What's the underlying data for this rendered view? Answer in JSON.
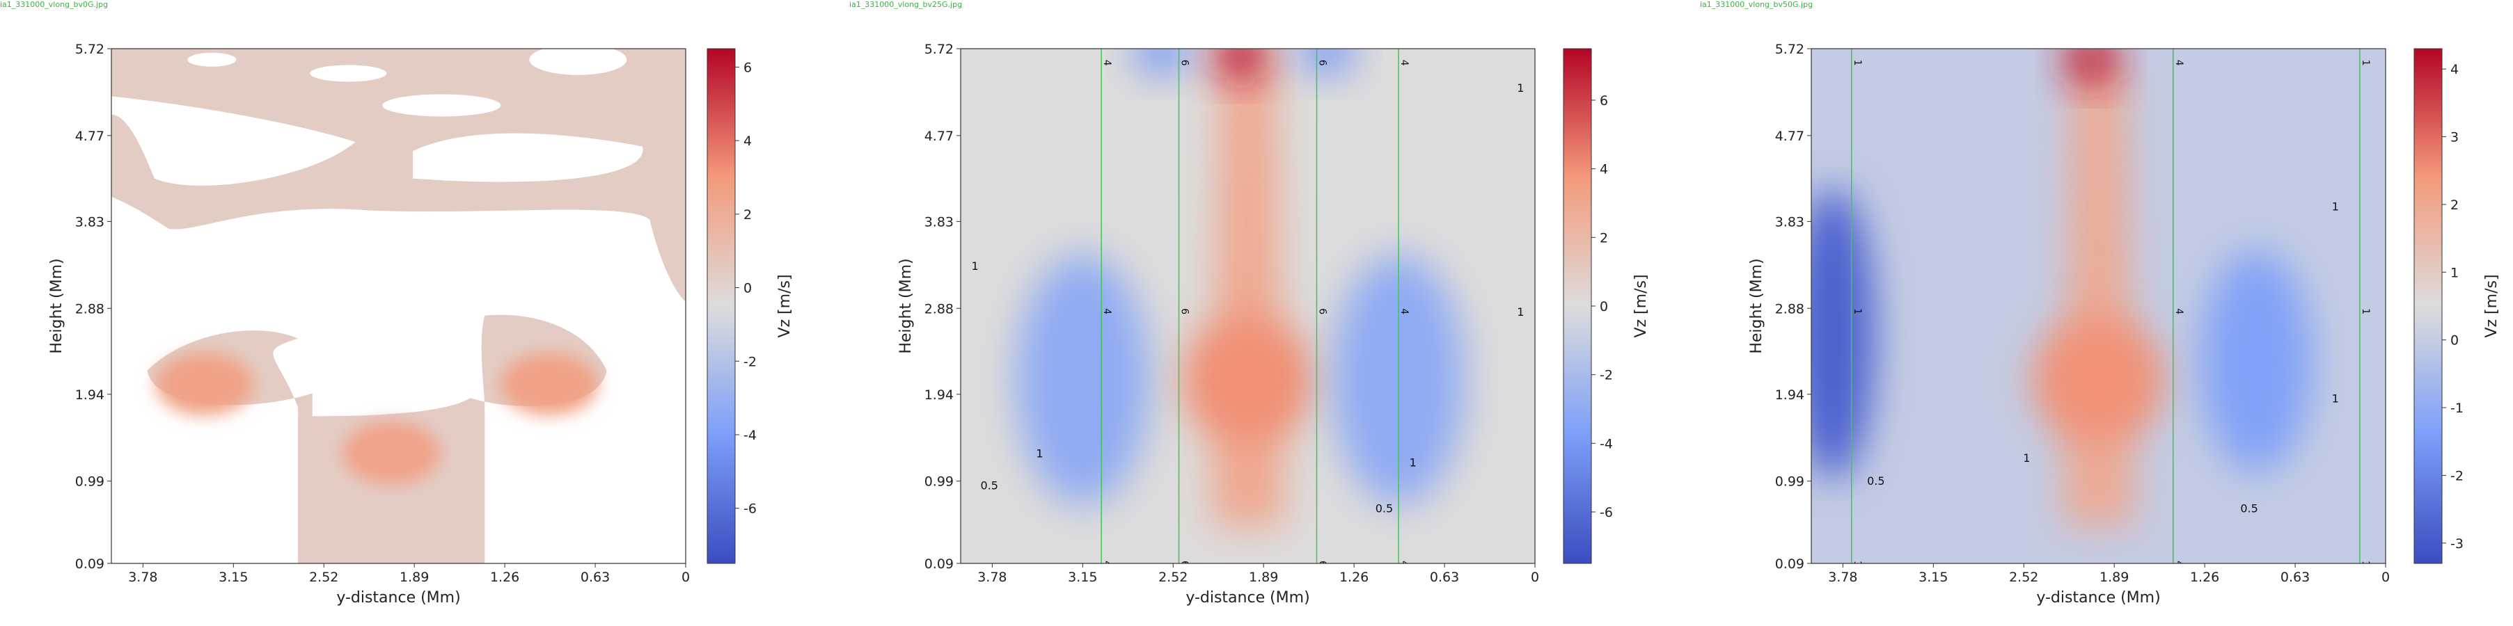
{
  "chart_data": [
    {
      "type": "heatmap",
      "filename": "ia1_331000_vlong_bv0G.jpg",
      "xlabel": "y-distance (Mm)",
      "ylabel": "Height (Mm)",
      "colorbar_label": "Vz [m/s]",
      "x_ticks": [
        "3.78",
        "3.15",
        "2.52",
        "1.89",
        "1.26",
        "0.63",
        "0"
      ],
      "y_ticks": [
        "0.09",
        "0.99",
        "1.94",
        "2.88",
        "3.83",
        "4.77",
        "5.72"
      ],
      "colorbar_ticks": [
        "-6",
        "-4",
        "-2",
        "0",
        "2",
        "4",
        "6"
      ],
      "colorbar_range": [
        -7.5,
        6.5
      ],
      "x_range": [
        4.0,
        0.0
      ],
      "y_range": [
        0.09,
        5.72
      ],
      "features": [
        {
          "kind": "blob",
          "x": 3.35,
          "y": 2.05,
          "value": 2.6
        },
        {
          "kind": "blob",
          "x": 0.95,
          "y": 2.05,
          "value": 2.6
        },
        {
          "kind": "blob",
          "x": 2.05,
          "y": 1.3,
          "value": 2.5
        }
      ],
      "contours": [],
      "field_lines": []
    },
    {
      "type": "heatmap",
      "filename": "ia1_331000_vlong_bv25G.jpg",
      "xlabel": "y-distance (Mm)",
      "ylabel": "Height (Mm)",
      "colorbar_label": "Vz [m/s]",
      "x_ticks": [
        "3.78",
        "3.15",
        "2.52",
        "1.89",
        "1.26",
        "0.63",
        "0"
      ],
      "y_ticks": [
        "0.09",
        "0.99",
        "1.94",
        "2.88",
        "3.83",
        "4.77",
        "5.72"
      ],
      "colorbar_ticks": [
        "-6",
        "-4",
        "-2",
        "0",
        "2",
        "4",
        "6"
      ],
      "colorbar_range": [
        -7.5,
        7.5
      ],
      "x_range": [
        4.0,
        0.0
      ],
      "y_range": [
        0.09,
        5.72
      ],
      "features": [
        {
          "kind": "column",
          "x": 2.0,
          "value": 3.2
        },
        {
          "kind": "blob",
          "x": 3.15,
          "y": 2.1,
          "value": -3.0
        },
        {
          "kind": "blob",
          "x": 0.95,
          "y": 2.1,
          "value": -3.0
        },
        {
          "kind": "blob",
          "x": 2.05,
          "y": 5.65,
          "value": 7.0
        },
        {
          "kind": "blob",
          "x": 2.6,
          "y": 5.7,
          "value": -4.0
        },
        {
          "kind": "blob",
          "x": 1.45,
          "y": 5.7,
          "value": -4.0
        }
      ],
      "contours": [
        {
          "label": "1",
          "x": 3.45,
          "y": 1.25
        },
        {
          "label": "0.5",
          "x": 3.8,
          "y": 0.9
        },
        {
          "label": "1",
          "x": 0.85,
          "y": 1.15
        },
        {
          "label": "0.5",
          "x": 1.05,
          "y": 0.65
        },
        {
          "label": "1",
          "x": 0.1,
          "y": 5.25
        },
        {
          "label": "1",
          "x": 3.9,
          "y": 3.3
        },
        {
          "label": "1",
          "x": 0.1,
          "y": 2.8
        }
      ],
      "field_lines": [
        {
          "x": 3.02,
          "label": "4"
        },
        {
          "x": 2.48,
          "label": "6"
        },
        {
          "x": 1.52,
          "label": "6"
        },
        {
          "x": 0.95,
          "label": "4"
        }
      ]
    },
    {
      "type": "heatmap",
      "filename": "ia1_331000_vlong_bv50G.jpg",
      "xlabel": "y-distance (Mm)",
      "ylabel": "Height (Mm)",
      "colorbar_label": "Vz [m/s]",
      "x_ticks": [
        "3.78",
        "3.15",
        "2.52",
        "1.89",
        "1.26",
        "0.63",
        "0"
      ],
      "y_ticks": [
        "0.09",
        "0.99",
        "1.94",
        "2.88",
        "3.83",
        "4.77",
        "5.72"
      ],
      "colorbar_ticks": [
        "-3",
        "-2",
        "-1",
        "0",
        "1",
        "2",
        "3",
        "4"
      ],
      "colorbar_range": [
        -3.3,
        4.3
      ],
      "x_range": [
        4.0,
        0.0
      ],
      "y_range": [
        0.09,
        5.72
      ],
      "features": [
        {
          "kind": "column",
          "x": 2.0,
          "value": 2.0
        },
        {
          "kind": "blob",
          "x": 3.85,
          "y": 2.6,
          "value": -2.8
        },
        {
          "kind": "blob",
          "x": 0.9,
          "y": 2.3,
          "value": -1.3
        },
        {
          "kind": "blob",
          "x": 2.05,
          "y": 5.6,
          "value": 4.0
        }
      ],
      "contours": [
        {
          "label": "1",
          "x": 2.5,
          "y": 1.2
        },
        {
          "label": "0.5",
          "x": 3.55,
          "y": 0.95
        },
        {
          "label": "0.5",
          "x": 0.95,
          "y": 0.65
        },
        {
          "label": "1",
          "x": 0.35,
          "y": 3.95
        },
        {
          "label": "1",
          "x": 0.35,
          "y": 1.85
        }
      ],
      "field_lines": [
        {
          "x": 3.72,
          "label": "1"
        },
        {
          "x": 1.48,
          "label": "4"
        },
        {
          "x": 0.18,
          "label": "1"
        }
      ]
    }
  ]
}
